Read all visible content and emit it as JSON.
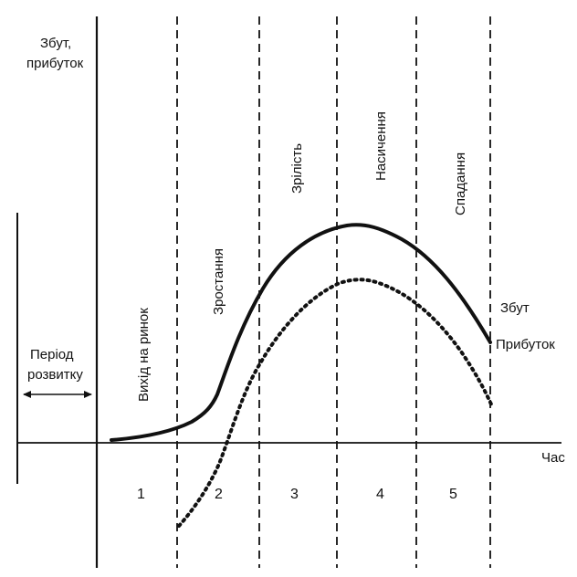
{
  "axes": {
    "y_label_line1": "Збут,",
    "y_label_line2": "прибуток",
    "x_label": "Час"
  },
  "development": {
    "label_line1": "Період",
    "label_line2": "розвитку"
  },
  "stages": [
    {
      "number": "1",
      "name": "Вихід на ринок"
    },
    {
      "number": "2",
      "name": "Зростання"
    },
    {
      "number": "3",
      "name": "Зрілість"
    },
    {
      "number": "4",
      "name": "Насичення"
    },
    {
      "number": "5",
      "name": "Спадання"
    }
  ],
  "curves": {
    "sales_label": "Збут",
    "profit_label": "Прибуток"
  },
  "colors": {
    "ink": "#111111",
    "background": "#ffffff"
  }
}
